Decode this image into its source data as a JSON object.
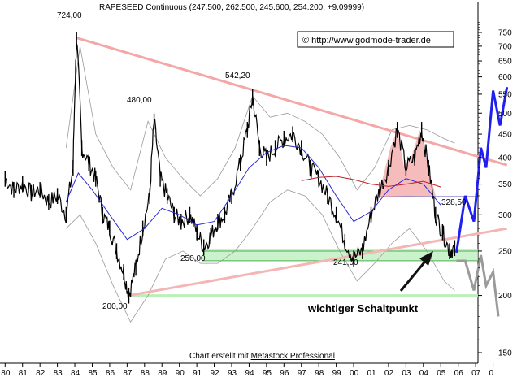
{
  "chart_data": {
    "type": "line",
    "title": "RAPESEED Continuous (247.500, 262.500, 245.600, 254.200, +9.09999)",
    "copyright": "© http://www.godmode-trader.de",
    "credit_prefix": "Chart erstellt mit ",
    "credit_link": "Metastock Professional",
    "y_scale": "log",
    "ylim": [
      140,
      800
    ],
    "y_ticks": [
      150,
      200,
      250,
      300,
      350,
      400,
      450,
      500,
      550,
      600,
      650,
      700,
      750
    ],
    "x_ticks": [
      "80",
      "81",
      "82",
      "83",
      "84",
      "85",
      "86",
      "87",
      "88",
      "89",
      "90",
      "91",
      "92",
      "93",
      "94",
      "95",
      "96",
      "97",
      "98",
      "99",
      "00",
      "01",
      "02",
      "03",
      "04",
      "05",
      "06",
      "07",
      "0"
    ],
    "annotations": {
      "peak_1984": "724,00",
      "peak_1988": "480,00",
      "peak_1994": "542,20",
      "low_1987": "200,00",
      "low_1991": "250,00",
      "low_2000": "241,00",
      "neckline": "328,50",
      "pivot": "wichtiger Schaltpunkt"
    },
    "levels": {
      "neckline": 328.5,
      "support_upper": 250,
      "support_lower": 241,
      "support_low": 200
    },
    "price_points": [
      [
        1980.0,
        360
      ],
      [
        1980.5,
        340
      ],
      [
        1981.0,
        350
      ],
      [
        1981.5,
        335
      ],
      [
        1982.0,
        340
      ],
      [
        1982.5,
        320
      ],
      [
        1983.0,
        330
      ],
      [
        1983.5,
        300
      ],
      [
        1983.9,
        380
      ],
      [
        1984.1,
        724
      ],
      [
        1984.4,
        420
      ],
      [
        1984.8,
        390
      ],
      [
        1985.2,
        360
      ],
      [
        1985.6,
        300
      ],
      [
        1986.0,
        280
      ],
      [
        1986.4,
        250
      ],
      [
        1986.8,
        225
      ],
      [
        1987.1,
        200
      ],
      [
        1987.5,
        230
      ],
      [
        1987.9,
        280
      ],
      [
        1988.3,
        330
      ],
      [
        1988.55,
        480
      ],
      [
        1988.9,
        360
      ],
      [
        1989.3,
        330
      ],
      [
        1989.7,
        300
      ],
      [
        1990.1,
        290
      ],
      [
        1990.6,
        300
      ],
      [
        1991.0,
        275
      ],
      [
        1991.4,
        255
      ],
      [
        1991.8,
        270
      ],
      [
        1992.2,
        290
      ],
      [
        1992.6,
        300
      ],
      [
        1993.0,
        330
      ],
      [
        1993.5,
        390
      ],
      [
        1993.9,
        460
      ],
      [
        1994.2,
        542.2
      ],
      [
        1994.6,
        420
      ],
      [
        1995.0,
        400
      ],
      [
        1995.5,
        420
      ],
      [
        1996.0,
        440
      ],
      [
        1996.5,
        450
      ],
      [
        1997.0,
        420
      ],
      [
        1997.5,
        380
      ],
      [
        1998.0,
        360
      ],
      [
        1998.5,
        330
      ],
      [
        1999.0,
        300
      ],
      [
        1999.5,
        262
      ],
      [
        2000.0,
        241
      ],
      [
        2000.5,
        250
      ],
      [
        2001.0,
        300
      ],
      [
        2001.5,
        340
      ],
      [
        2002.0,
        380
      ],
      [
        2002.5,
        460
      ],
      [
        2003.0,
        380
      ],
      [
        2003.5,
        400
      ],
      [
        2003.9,
        460
      ],
      [
        2004.3,
        380
      ],
      [
        2004.7,
        300
      ],
      [
        2005.1,
        275
      ],
      [
        2005.5,
        250
      ],
      [
        2005.8,
        254
      ]
    ],
    "ma_points": [
      [
        1983.5,
        320
      ],
      [
        1984.2,
        370
      ],
      [
        1985.0,
        340
      ],
      [
        1986.0,
        300
      ],
      [
        1987.0,
        265
      ],
      [
        1988.0,
        280
      ],
      [
        1989.0,
        310
      ],
      [
        1990.0,
        300
      ],
      [
        1991.0,
        285
      ],
      [
        1992.0,
        290
      ],
      [
        1993.0,
        330
      ],
      [
        1994.0,
        380
      ],
      [
        1995.0,
        410
      ],
      [
        1996.0,
        425
      ],
      [
        1997.0,
        420
      ],
      [
        1998.0,
        380
      ],
      [
        1999.0,
        330
      ],
      [
        2000.0,
        290
      ],
      [
        2001.0,
        305
      ],
      [
        2002.0,
        340
      ],
      [
        2003.0,
        360
      ],
      [
        2004.0,
        350
      ],
      [
        2005.0,
        315
      ]
    ],
    "ma_red_points": [
      [
        1997.0,
        356
      ],
      [
        1998.0,
        362
      ],
      [
        1999.0,
        364
      ],
      [
        2000.0,
        358
      ],
      [
        2001.0,
        350
      ],
      [
        2002.0,
        346
      ],
      [
        2003.0,
        350
      ],
      [
        2004.0,
        355
      ],
      [
        2005.0,
        345
      ]
    ],
    "band_upper": [
      [
        1983.5,
        420
      ],
      [
        1984.3,
        700
      ],
      [
        1985.2,
        450
      ],
      [
        1986.2,
        380
      ],
      [
        1987.2,
        340
      ],
      [
        1988.2,
        480
      ],
      [
        1989.2,
        400
      ],
      [
        1990.2,
        360
      ],
      [
        1991.2,
        330
      ],
      [
        1992.2,
        360
      ],
      [
        1993.2,
        420
      ],
      [
        1994.2,
        545
      ],
      [
        1995.2,
        490
      ],
      [
        1996.2,
        500
      ],
      [
        1997.2,
        480
      ],
      [
        1998.2,
        450
      ],
      [
        1999.2,
        400
      ],
      [
        2000.2,
        340
      ],
      [
        2001.2,
        380
      ],
      [
        2002.2,
        460
      ],
      [
        2003.2,
        470
      ],
      [
        2004.2,
        460
      ],
      [
        2005.2,
        440
      ],
      [
        2005.8,
        430
      ]
    ],
    "band_lower": [
      [
        1983.5,
        280
      ],
      [
        1984.3,
        300
      ],
      [
        1985.2,
        260
      ],
      [
        1986.2,
        210
      ],
      [
        1987.2,
        175
      ],
      [
        1988.2,
        200
      ],
      [
        1989.2,
        240
      ],
      [
        1990.2,
        250
      ],
      [
        1991.2,
        235
      ],
      [
        1992.2,
        235
      ],
      [
        1993.2,
        250
      ],
      [
        1994.2,
        280
      ],
      [
        1995.2,
        320
      ],
      [
        1996.2,
        340
      ],
      [
        1997.2,
        330
      ],
      [
        1998.2,
        300
      ],
      [
        1999.2,
        250
      ],
      [
        2000.2,
        215
      ],
      [
        2001.2,
        235
      ],
      [
        2002.2,
        260
      ],
      [
        2003.2,
        280
      ],
      [
        2004.2,
        250
      ],
      [
        2005.2,
        215
      ],
      [
        2005.8,
        205
      ]
    ],
    "forecast_bull": [
      [
        2005.9,
        248
      ],
      [
        2006.4,
        330
      ],
      [
        2006.9,
        290
      ],
      [
        2007.3,
        420
      ],
      [
        2007.6,
        380
      ],
      [
        2008.0,
        560
      ],
      [
        2008.4,
        470
      ],
      [
        2008.8,
        570
      ]
    ],
    "forecast_bear": [
      [
        2005.9,
        238
      ],
      [
        2006.4,
        238
      ],
      [
        2006.9,
        205
      ],
      [
        2007.3,
        245
      ],
      [
        2007.6,
        210
      ],
      [
        2008.0,
        225
      ],
      [
        2008.3,
        180
      ]
    ],
    "trendline_down": [
      [
        1984.1,
        730
      ],
      [
        2008.8,
        385
      ]
    ],
    "trendline_up": [
      [
        1987.1,
        200
      ],
      [
        2008.8,
        280
      ]
    ]
  }
}
